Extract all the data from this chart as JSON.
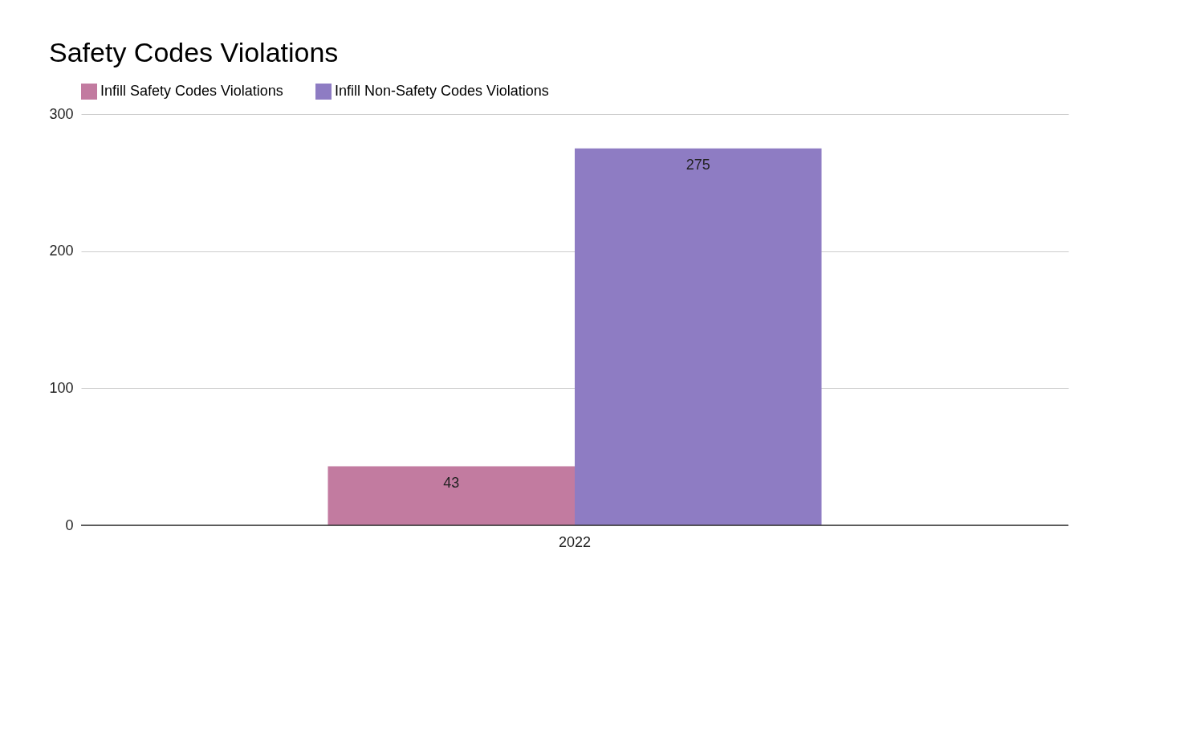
{
  "chart_data": {
    "type": "bar",
    "title": "Safety Codes Violations",
    "categories": [
      "2022"
    ],
    "series": [
      {
        "name": "Infill Safety Codes Violations",
        "color": "#c27ba0",
        "values": [
          43
        ]
      },
      {
        "name": "Infill Non-Safety Codes Violations",
        "color": "#8e7cc3",
        "values": [
          275
        ]
      }
    ],
    "ylim": [
      0,
      300
    ],
    "yticks": [
      0,
      100,
      200,
      300
    ],
    "grid": "y",
    "legend": "top",
    "data_labels": true
  }
}
